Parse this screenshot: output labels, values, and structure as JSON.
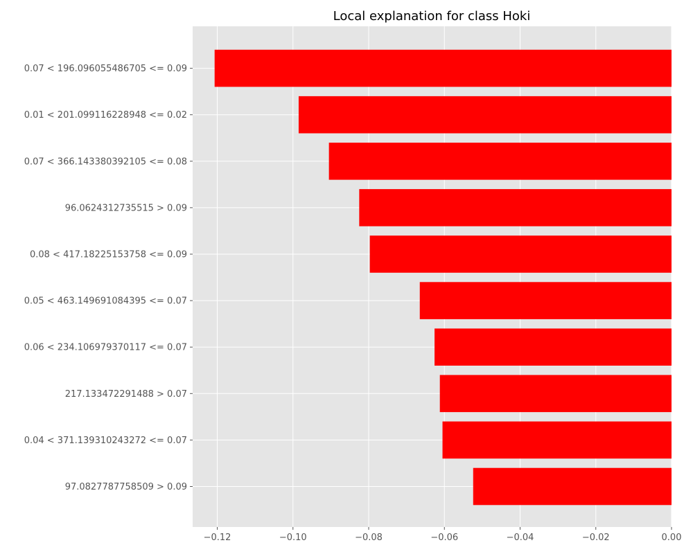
{
  "chart_data": {
    "type": "bar",
    "orientation": "horizontal",
    "title": "Local explanation for class Hoki",
    "xlabel": "",
    "ylabel": "",
    "categories": [
      "0.07 < 196.096055486705 <= 0.09",
      "0.01 < 201.099116228948 <= 0.02",
      "0.07 < 366.143380392105 <= 0.08",
      "96.0624312735515 > 0.09",
      "0.08 < 417.18225153758 <= 0.09",
      "0.05 < 463.149691084395 <= 0.07",
      "0.06 < 234.106979370117 <= 0.07",
      "217.133472291488 > 0.07",
      "0.04 < 371.139310243272 <= 0.07",
      "97.0827787758509 > 0.09"
    ],
    "values": [
      -0.1207,
      -0.0985,
      -0.0905,
      -0.0825,
      -0.0797,
      -0.0665,
      -0.0626,
      -0.0612,
      -0.0605,
      -0.0524
    ],
    "xlim": [
      -0.1265,
      0.0
    ],
    "xticks": [
      -0.12,
      -0.1,
      -0.08,
      -0.06,
      -0.04,
      -0.02,
      0.0
    ],
    "xtick_labels": [
      "−0.12",
      "−0.10",
      "−0.08",
      "−0.06",
      "−0.04",
      "−0.02",
      "0.00"
    ],
    "grid": true,
    "colors": {
      "bar": "#ff0000",
      "background": "#e5e5e5",
      "grid": "#ffffff",
      "tick_text": "#555555"
    }
  }
}
